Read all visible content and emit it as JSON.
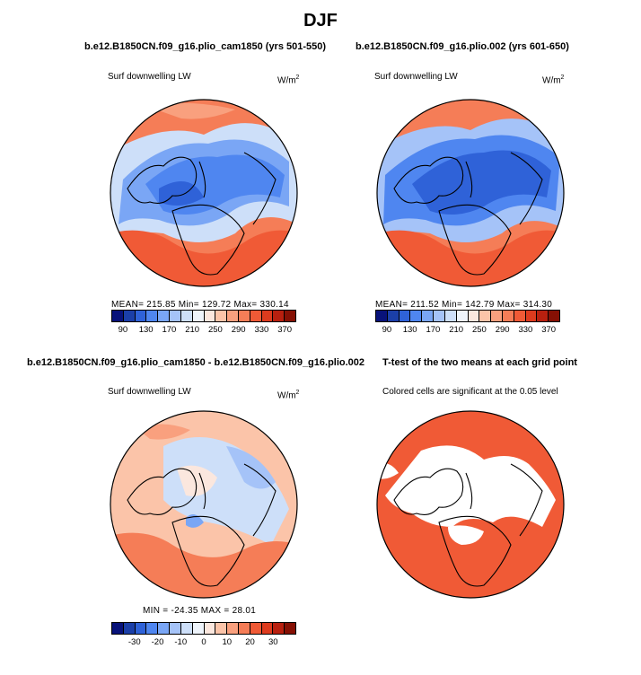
{
  "title": "DJF",
  "panels": [
    {
      "title": "b.e12.B1850CN.f09_g16.plio_cam1850 (yrs 501-550)",
      "subtitle": "Surf downwelling LW",
      "units": "W/m",
      "units_sup": "2",
      "stats": "MEAN= 215.85  Min= 129.72  Max= 330.14",
      "mean": 215.85,
      "min": 129.72,
      "max": 330.14
    },
    {
      "title": "b.e12.B1850CN.f09_g16.plio.002 (yrs 601-650)",
      "subtitle": "Surf downwelling LW",
      "units": "W/m",
      "units_sup": "2",
      "stats": "MEAN= 211.52  Min= 142.79  Max= 314.30",
      "mean": 211.52,
      "min": 142.79,
      "max": 314.3
    },
    {
      "title": "b.e12.B1850CN.f09_g16.plio_cam1850 - b.e12.B1850CN.f09_g16.plio.002",
      "subtitle": "Surf downwelling LW",
      "units": "W/m",
      "units_sup": "2",
      "stats": "MIN = -24.35  MAX =  28.01",
      "min": -24.35,
      "max": 28.01
    },
    {
      "title": "T-test of the two means at each grid point",
      "subtitle": "Colored cells are significant at the 0.05 level"
    }
  ],
  "colorbars": {
    "absolute": {
      "labels": [
        "90",
        "130",
        "170",
        "210",
        "250",
        "290",
        "330",
        "370"
      ],
      "colors": [
        "#08127a",
        "#1b3fa8",
        "#2f62d8",
        "#4f86f0",
        "#7aa6f5",
        "#a5c3f8",
        "#cddff9",
        "#eef4fb",
        "#fbe7de",
        "#fbc4a9",
        "#f9a07e",
        "#f57d57",
        "#f05a36",
        "#dd3b1e",
        "#b8200f",
        "#861004"
      ]
    },
    "difference": {
      "labels": [
        "-30",
        "-20",
        "-10",
        "0",
        "10",
        "20",
        "30"
      ],
      "colors": [
        "#08127a",
        "#1b3fa8",
        "#2f62d8",
        "#4f86f0",
        "#7aa6f5",
        "#a5c3f8",
        "#cddff9",
        "#eef4fb",
        "#fbe7de",
        "#fbc4a9",
        "#f9a07e",
        "#f57d57",
        "#f05a36",
        "#dd3b1e",
        "#b8200f",
        "#861004"
      ]
    }
  },
  "chart_data": [
    {
      "type": "heatmap",
      "projection": "polar stereographic (north)",
      "title": "b.e12.B1850CN.f09_g16.plio_cam1850 (yrs 501-550)",
      "variable": "Surf downwelling LW",
      "units": "W/m2",
      "mean": 215.85,
      "min": 129.72,
      "max": 330.14,
      "color_levels": [
        90,
        130,
        170,
        210,
        250,
        290,
        330,
        370
      ]
    },
    {
      "type": "heatmap",
      "projection": "polar stereographic (north)",
      "title": "b.e12.B1850CN.f09_g16.plio.002 (yrs 601-650)",
      "variable": "Surf downwelling LW",
      "units": "W/m2",
      "mean": 211.52,
      "min": 142.79,
      "max": 314.3,
      "color_levels": [
        90,
        130,
        170,
        210,
        250,
        290,
        330,
        370
      ]
    },
    {
      "type": "heatmap",
      "projection": "polar stereographic (north)",
      "title": "difference",
      "variable": "Surf downwelling LW",
      "units": "W/m2",
      "min": -24.35,
      "max": 28.01,
      "color_levels": [
        -30,
        -20,
        -10,
        0,
        10,
        20,
        30
      ]
    },
    {
      "type": "heatmap",
      "projection": "polar stereographic (north)",
      "title": "T-test of the two means at each grid point",
      "note": "Colored cells are significant at the 0.05 level",
      "significance_level": 0.05
    }
  ]
}
